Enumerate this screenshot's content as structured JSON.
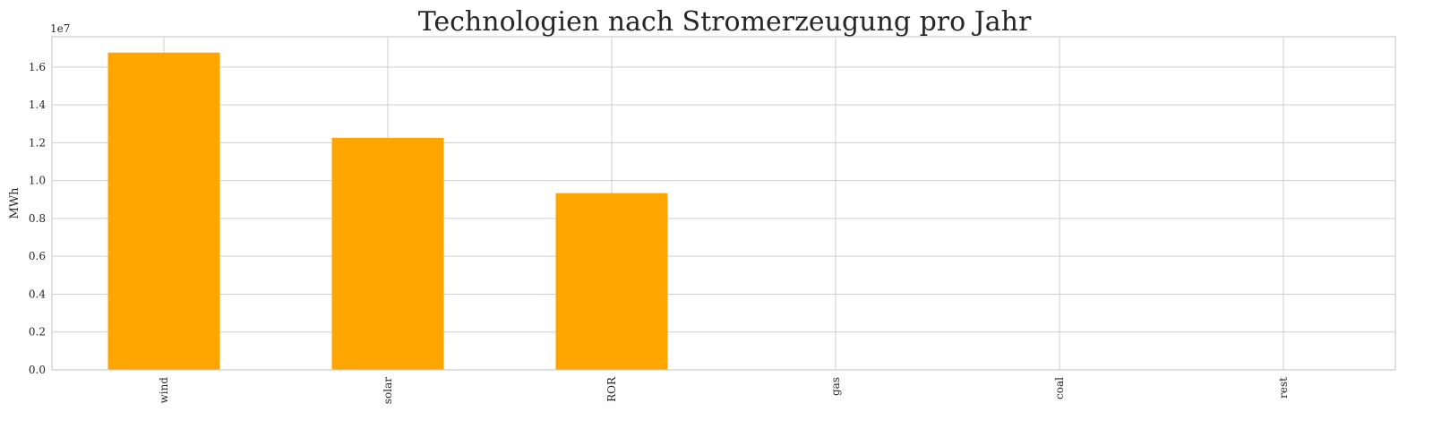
{
  "chart_data": {
    "type": "bar",
    "title": "Technologien nach Stromerzeugung pro Jahr",
    "xlabel": "",
    "ylabel": "MWh",
    "offset_label": "1e7",
    "categories": [
      "wind",
      "solar",
      "ROR",
      "gas",
      "coal",
      "rest"
    ],
    "values": [
      16760000,
      12260000,
      9340000,
      0,
      0,
      0
    ],
    "ylim": [
      0,
      17600000
    ],
    "yticks": [
      0,
      2000000,
      4000000,
      6000000,
      8000000,
      10000000,
      12000000,
      14000000,
      16000000
    ],
    "ytick_labels": [
      "0.0",
      "0.2",
      "0.4",
      "0.6",
      "0.8",
      "1.0",
      "1.2",
      "1.4",
      "1.6"
    ],
    "grid": true,
    "legend": "none",
    "bar_color": "#ffa500"
  }
}
